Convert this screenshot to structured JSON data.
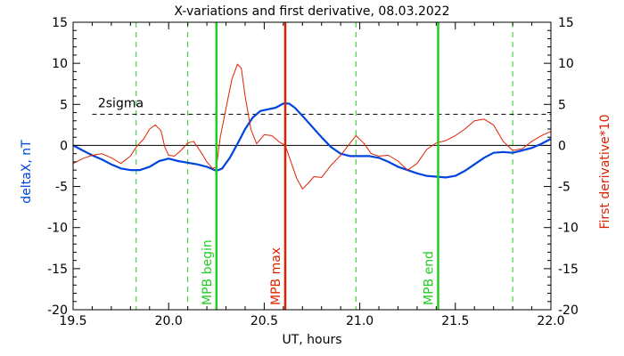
{
  "chart_data": {
    "type": "line",
    "title": "X-variations and first derivative, 08.03.2022",
    "xlabel": "UT, hours",
    "ylabel_left": "deltaX, nT",
    "ylabel_right": "First derivative*10",
    "xlim": [
      19.5,
      22.0
    ],
    "ylim": [
      -20,
      15
    ],
    "x_ticks": [
      "19.5",
      "20.0",
      "20.5",
      "21.0",
      "21.5",
      "22.0"
    ],
    "y_ticks": [
      "15",
      "10",
      "5",
      "0",
      "-5",
      "-10",
      "-15",
      "-20"
    ],
    "colors": {
      "deltaX": "#0044dd",
      "derivative": "#dd2200",
      "markers": "#22cc22",
      "max_marker": "#dd2200",
      "guide": "#000000"
    },
    "threshold": {
      "label": "2sigma",
      "value": 3.8
    },
    "zero_line": 0,
    "dashed_markers": [
      19.83,
      20.1,
      20.98,
      21.8
    ],
    "vertical_markers": [
      {
        "x": 20.25,
        "label": "MPB begin",
        "color": "#22cc22"
      },
      {
        "x": 20.61,
        "label": "MPB max",
        "color": "#dd2200"
      },
      {
        "x": 21.41,
        "label": "MPB end",
        "color": "#22cc22"
      }
    ],
    "series": [
      {
        "key": "deltaX",
        "color": "#0044dd",
        "points": [
          [
            19.5,
            0.0
          ],
          [
            19.55,
            -0.6
          ],
          [
            19.6,
            -1.2
          ],
          [
            19.65,
            -1.7
          ],
          [
            19.7,
            -2.3
          ],
          [
            19.75,
            -2.8
          ],
          [
            19.8,
            -3.0
          ],
          [
            19.85,
            -3.0
          ],
          [
            19.9,
            -2.6
          ],
          [
            19.95,
            -1.9
          ],
          [
            20.0,
            -1.6
          ],
          [
            20.05,
            -1.9
          ],
          [
            20.1,
            -2.1
          ],
          [
            20.15,
            -2.3
          ],
          [
            20.2,
            -2.6
          ],
          [
            20.25,
            -3.1
          ],
          [
            20.28,
            -2.8
          ],
          [
            20.32,
            -1.5
          ],
          [
            20.36,
            0.2
          ],
          [
            20.4,
            2.0
          ],
          [
            20.44,
            3.4
          ],
          [
            20.48,
            4.2
          ],
          [
            20.52,
            4.4
          ],
          [
            20.56,
            4.6
          ],
          [
            20.6,
            5.1
          ],
          [
            20.63,
            5.1
          ],
          [
            20.66,
            4.6
          ],
          [
            20.7,
            3.6
          ],
          [
            20.75,
            2.3
          ],
          [
            20.8,
            1.0
          ],
          [
            20.85,
            -0.2
          ],
          [
            20.9,
            -1.0
          ],
          [
            20.95,
            -1.3
          ],
          [
            21.0,
            -1.3
          ],
          [
            21.05,
            -1.3
          ],
          [
            21.1,
            -1.5
          ],
          [
            21.15,
            -2.0
          ],
          [
            21.2,
            -2.6
          ],
          [
            21.25,
            -3.0
          ],
          [
            21.3,
            -3.4
          ],
          [
            21.35,
            -3.7
          ],
          [
            21.4,
            -3.8
          ],
          [
            21.45,
            -3.9
          ],
          [
            21.5,
            -3.7
          ],
          [
            21.55,
            -3.1
          ],
          [
            21.6,
            -2.3
          ],
          [
            21.65,
            -1.5
          ],
          [
            21.7,
            -0.9
          ],
          [
            21.75,
            -0.8
          ],
          [
            21.8,
            -0.9
          ],
          [
            21.85,
            -0.6
          ],
          [
            21.9,
            -0.3
          ],
          [
            21.95,
            0.2
          ],
          [
            22.0,
            0.8
          ]
        ]
      },
      {
        "key": "derivative",
        "color": "#dd2200",
        "points": [
          [
            19.5,
            -2.2
          ],
          [
            19.55,
            -1.6
          ],
          [
            19.6,
            -1.2
          ],
          [
            19.65,
            -1.0
          ],
          [
            19.7,
            -1.5
          ],
          [
            19.75,
            -2.2
          ],
          [
            19.8,
            -1.3
          ],
          [
            19.83,
            -0.2
          ],
          [
            19.87,
            0.8
          ],
          [
            19.9,
            2.0
          ],
          [
            19.93,
            2.5
          ],
          [
            19.96,
            1.8
          ],
          [
            19.98,
            -0.2
          ],
          [
            20.0,
            -1.2
          ],
          [
            20.03,
            -1.3
          ],
          [
            20.06,
            -0.7
          ],
          [
            20.1,
            0.3
          ],
          [
            20.13,
            0.5
          ],
          [
            20.16,
            -0.5
          ],
          [
            20.2,
            -2.0
          ],
          [
            20.23,
            -2.8
          ],
          [
            20.25,
            -2.6
          ],
          [
            20.27,
            1.0
          ],
          [
            20.3,
            4.5
          ],
          [
            20.33,
            8.0
          ],
          [
            20.36,
            9.9
          ],
          [
            20.38,
            9.4
          ],
          [
            20.4,
            6.0
          ],
          [
            20.43,
            2.0
          ],
          [
            20.46,
            0.2
          ],
          [
            20.5,
            1.3
          ],
          [
            20.54,
            1.2
          ],
          [
            20.58,
            0.4
          ],
          [
            20.61,
            0.0
          ],
          [
            20.64,
            -2.0
          ],
          [
            20.67,
            -4.0
          ],
          [
            20.7,
            -5.3
          ],
          [
            20.73,
            -4.6
          ],
          [
            20.76,
            -3.8
          ],
          [
            20.8,
            -3.9
          ],
          [
            20.85,
            -2.4
          ],
          [
            20.9,
            -1.2
          ],
          [
            20.94,
            0.0
          ],
          [
            20.98,
            1.2
          ],
          [
            21.02,
            0.3
          ],
          [
            21.06,
            -1.0
          ],
          [
            21.1,
            -1.3
          ],
          [
            21.15,
            -1.2
          ],
          [
            21.2,
            -1.9
          ],
          [
            21.25,
            -3.0
          ],
          [
            21.3,
            -2.2
          ],
          [
            21.35,
            -0.5
          ],
          [
            21.4,
            0.3
          ],
          [
            21.45,
            0.6
          ],
          [
            21.5,
            1.2
          ],
          [
            21.55,
            2.0
          ],
          [
            21.6,
            3.0
          ],
          [
            21.65,
            3.2
          ],
          [
            21.7,
            2.5
          ],
          [
            21.75,
            0.5
          ],
          [
            21.8,
            -0.6
          ],
          [
            21.85,
            -0.4
          ],
          [
            21.9,
            0.5
          ],
          [
            21.95,
            1.2
          ],
          [
            22.0,
            1.7
          ]
        ]
      }
    ]
  }
}
